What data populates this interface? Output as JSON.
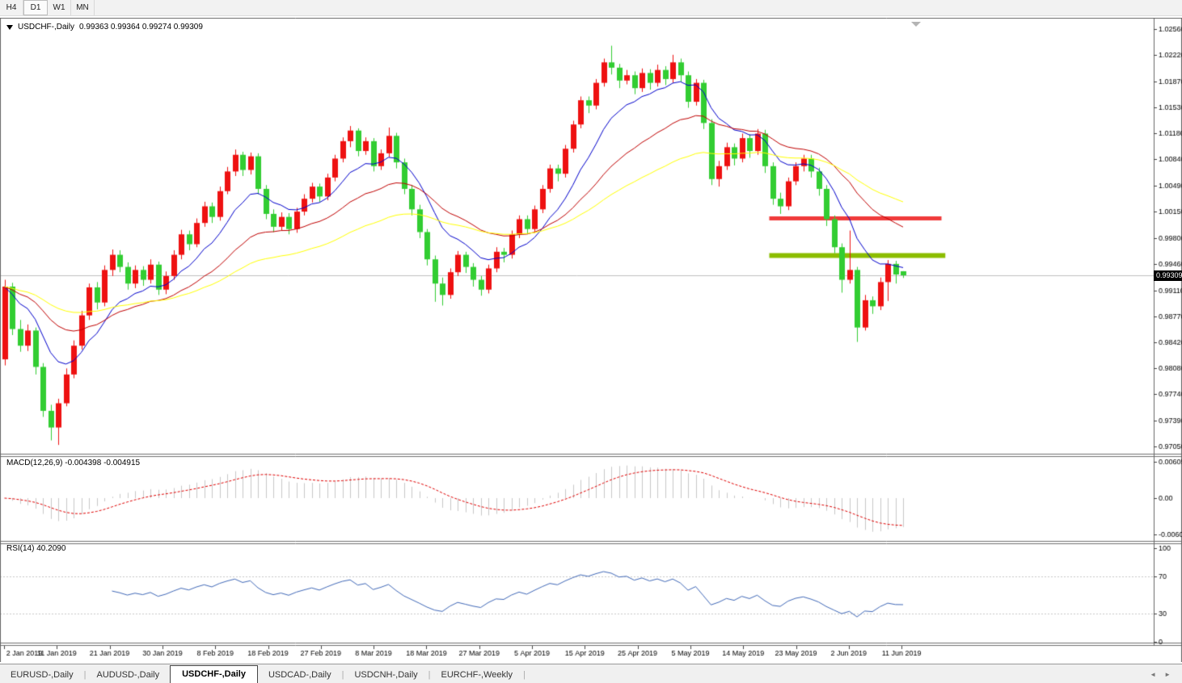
{
  "toolbar": {
    "buttons": [
      {
        "id": "h4",
        "label": "H4",
        "active": false
      },
      {
        "id": "d1",
        "label": "D1",
        "active": true
      },
      {
        "id": "w1",
        "label": "W1",
        "active": false
      },
      {
        "id": "mn",
        "label": "MN",
        "active": false
      }
    ]
  },
  "chart_header": {
    "symbol_period": "USDCHF-,Daily",
    "ohlc_text": "0.99363  0.99364  0.99274  0.99309"
  },
  "pane_labels": {
    "macd": "MACD(12,26,9) -0.004398 -0.004915",
    "rsi": "RSI(14) 40.2090"
  },
  "current_price_badge": "0.99309",
  "chart_data": {
    "type": "candlestick",
    "title": "USDCHF-,Daily",
    "ohlc_display": {
      "open": "0.99363",
      "high": "0.99364",
      "low": "0.99274",
      "close": "0.99309"
    },
    "current_price": 0.99309,
    "colors": {
      "bull": "#ee1111",
      "bear": "#32cd32",
      "ma_fast": "#0000cc",
      "ma_mid": "#c00000",
      "ma_slow": "#ffff00",
      "price_line": "#c0c0c0",
      "hline_resistance": "#f03b3b",
      "hline_support": "#8cbd00",
      "macd_bars": "#c8c8c8",
      "macd_signal": "#e00000",
      "rsi_line": "#4169b8",
      "rsi_levels": "#c8c8c8",
      "axis_text": "#000000",
      "frame": "#666666"
    },
    "y_ticks": [
      "1.02560",
      "1.02220",
      "1.01870",
      "1.01530",
      "1.01180",
      "1.00840",
      "1.00490",
      "1.00150",
      "0.99800",
      "0.99460",
      "0.99110",
      "0.98770",
      "0.98420",
      "0.98080",
      "0.97740",
      "0.97390",
      "0.97050"
    ],
    "price_axis": {
      "top": 1.02709,
      "bottom": 0.96954
    },
    "x_labels": [
      "2 Jan 2019",
      "11 Jan 2019",
      "21 Jan 2019",
      "30 Jan 2019",
      "8 Feb 2019",
      "18 Feb 2019",
      "27 Feb 2019",
      "8 Mar 2019",
      "18 Mar 2019",
      "27 Mar 2019",
      "5 Apr 2019",
      "15 Apr 2019",
      "25 Apr 2019",
      "5 May 2019",
      "14 May 2019",
      "23 May 2019",
      "2 Jun 2019",
      "11 Jun 2019"
    ],
    "moving_averages": [
      {
        "period": 10,
        "color_key": "ma_fast"
      },
      {
        "period": 25,
        "color_key": "ma_mid"
      },
      {
        "period": 50,
        "color_key": "ma_slow"
      }
    ],
    "hlines": [
      {
        "price": 1.0006,
        "color_key": "hline_resistance",
        "width": 5,
        "from_index": 100,
        "to_index": 122
      },
      {
        "price": 0.9957,
        "color_key": "hline_support",
        "width": 6,
        "from_index": 100,
        "to_index": 122.5
      }
    ],
    "macd": {
      "params": "12,26,9",
      "value": -0.004398,
      "signal": -0.004915,
      "y_ticks": [
        {
          "label": "0.006058",
          "value": 0.006058
        },
        {
          "label": "0.00",
          "value": 0.0
        },
        {
          "label": "-0.006096",
          "value": -0.006096
        }
      ]
    },
    "rsi": {
      "period": 14,
      "value": 40.209,
      "levels": [
        70,
        30
      ],
      "y_ticks": [
        {
          "label": "100",
          "value": 100
        },
        {
          "label": "70",
          "value": 70
        },
        {
          "label": "30",
          "value": 30
        },
        {
          "label": "0",
          "value": 0
        }
      ]
    },
    "candles": [
      [
        0.982,
        0.9925,
        0.9812,
        0.9916
      ],
      [
        0.9916,
        0.9921,
        0.9852,
        0.986
      ],
      [
        0.986,
        0.9872,
        0.983,
        0.9838
      ],
      [
        0.9838,
        0.9866,
        0.9831,
        0.9858
      ],
      [
        0.9858,
        0.9862,
        0.98,
        0.981
      ],
      [
        0.981,
        0.9815,
        0.9744,
        0.9752
      ],
      [
        0.9752,
        0.976,
        0.9713,
        0.973
      ],
      [
        0.973,
        0.9768,
        0.9707,
        0.9762
      ],
      [
        0.9762,
        0.9808,
        0.9758,
        0.98
      ],
      [
        0.98,
        0.9845,
        0.9795,
        0.9838
      ],
      [
        0.9838,
        0.9884,
        0.9833,
        0.9878
      ],
      [
        0.9878,
        0.992,
        0.9872,
        0.9915
      ],
      [
        0.9915,
        0.9922,
        0.9886,
        0.9895
      ],
      [
        0.9895,
        0.9944,
        0.989,
        0.9938
      ],
      [
        0.9938,
        0.9965,
        0.993,
        0.9958
      ],
      [
        0.9958,
        0.9964,
        0.9935,
        0.9942
      ],
      [
        0.9942,
        0.9948,
        0.9912,
        0.992
      ],
      [
        0.992,
        0.9944,
        0.9914,
        0.9938
      ],
      [
        0.9938,
        0.9943,
        0.9917,
        0.9925
      ],
      [
        0.9925,
        0.9952,
        0.992,
        0.9945
      ],
      [
        0.9945,
        0.9949,
        0.9905,
        0.9912
      ],
      [
        0.9912,
        0.9936,
        0.9906,
        0.993
      ],
      [
        0.993,
        0.9964,
        0.9925,
        0.9958
      ],
      [
        0.9958,
        0.9991,
        0.9952,
        0.9985
      ],
      [
        0.9985,
        0.999,
        0.9964,
        0.9972
      ],
      [
        0.9972,
        1.0006,
        0.9968,
        1.0
      ],
      [
        1.0,
        1.0028,
        0.9995,
        1.0022
      ],
      [
        1.0022,
        1.0027,
        1.0,
        1.0008
      ],
      [
        1.0008,
        1.0048,
        1.0003,
        1.0042
      ],
      [
        1.0042,
        1.0074,
        1.0038,
        1.0068
      ],
      [
        1.0068,
        1.0097,
        1.0062,
        1.009
      ],
      [
        1.009,
        1.0094,
        1.0062,
        1.007
      ],
      [
        1.007,
        1.0093,
        1.0064,
        1.0088
      ],
      [
        1.0088,
        1.0092,
        1.0038,
        1.0045
      ],
      [
        1.0045,
        1.005,
        1.0005,
        1.0012
      ],
      [
        1.0012,
        1.0018,
        0.9988,
        0.9995
      ],
      [
        0.9995,
        1.0014,
        0.999,
        1.0008
      ],
      [
        1.0008,
        1.0013,
        0.9985,
        0.9992
      ],
      [
        0.9992,
        1.002,
        0.9987,
        1.0015
      ],
      [
        1.0015,
        1.0038,
        1.001,
        1.0032
      ],
      [
        1.0032,
        1.0053,
        1.0027,
        1.0048
      ],
      [
        1.0048,
        1.0052,
        1.0028,
        1.0035
      ],
      [
        1.0035,
        1.0065,
        1.003,
        1.006
      ],
      [
        1.006,
        1.009,
        1.0055,
        1.0085
      ],
      [
        1.0085,
        1.0113,
        1.008,
        1.0108
      ],
      [
        1.0108,
        1.0128,
        1.01,
        1.0122
      ],
      [
        1.0122,
        1.0125,
        1.0088,
        1.0095
      ],
      [
        1.0095,
        1.0113,
        1.009,
        1.0108
      ],
      [
        1.0108,
        1.0112,
        1.0068,
        1.0075
      ],
      [
        1.0075,
        1.0097,
        1.007,
        1.0092
      ],
      [
        1.0092,
        1.0126,
        1.0087,
        1.0115
      ],
      [
        1.0115,
        1.0119,
        1.0072,
        1.008
      ],
      [
        1.008,
        1.0085,
        1.0038,
        1.0045
      ],
      [
        1.0045,
        1.005,
        1.001,
        1.0018
      ],
      [
        1.0018,
        1.0024,
        0.998,
        0.9988
      ],
      [
        0.9988,
        0.9992,
        0.9944,
        0.9952
      ],
      [
        0.9952,
        0.9957,
        0.9896,
        0.992
      ],
      [
        0.992,
        0.9928,
        0.9891,
        0.9905
      ],
      [
        0.9905,
        0.994,
        0.99,
        0.9935
      ],
      [
        0.9935,
        0.9963,
        0.993,
        0.9958
      ],
      [
        0.9958,
        0.9962,
        0.9934,
        0.9942
      ],
      [
        0.9942,
        0.9947,
        0.9916,
        0.9925
      ],
      [
        0.9925,
        0.993,
        0.9904,
        0.9912
      ],
      [
        0.9912,
        0.9945,
        0.9907,
        0.994
      ],
      [
        0.994,
        0.9968,
        0.9935,
        0.9962
      ],
      [
        0.9962,
        0.9967,
        0.9948,
        0.9958
      ],
      [
        0.9958,
        0.999,
        0.9953,
        0.9985
      ],
      [
        0.9985,
        1.001,
        0.998,
        1.0005
      ],
      [
        1.0005,
        1.001,
        0.9985,
        0.9992
      ],
      [
        0.9992,
        1.0023,
        0.9987,
        1.0018
      ],
      [
        1.0018,
        1.005,
        1.0013,
        1.0045
      ],
      [
        1.0045,
        1.0077,
        1.004,
        1.0072
      ],
      [
        1.0072,
        1.0077,
        1.0055,
        1.0065
      ],
      [
        1.0065,
        1.0103,
        1.006,
        1.0098
      ],
      [
        1.0098,
        1.0135,
        1.0093,
        1.013
      ],
      [
        1.013,
        1.0167,
        1.0125,
        1.0162
      ],
      [
        1.0162,
        1.0167,
        1.0145,
        1.0155
      ],
      [
        1.0155,
        1.019,
        1.015,
        1.0185
      ],
      [
        1.0185,
        1.0217,
        1.018,
        1.0212
      ],
      [
        1.0212,
        1.0234,
        1.0196,
        1.0205
      ],
      [
        1.0205,
        1.021,
        1.0178,
        1.0188
      ],
      [
        1.0188,
        1.0202,
        1.0183,
        1.0195
      ],
      [
        1.0195,
        1.02,
        1.017,
        1.0178
      ],
      [
        1.0178,
        1.0204,
        1.0173,
        1.0198
      ],
      [
        1.0198,
        1.0203,
        1.0176,
        1.0185
      ],
      [
        1.0185,
        1.0209,
        1.018,
        1.0202
      ],
      [
        1.0202,
        1.0207,
        1.0182,
        1.019
      ],
      [
        1.019,
        1.0222,
        1.0185,
        1.0212
      ],
      [
        1.0212,
        1.0217,
        1.0186,
        1.0195
      ],
      [
        1.0195,
        1.02,
        1.0152,
        1.016
      ],
      [
        1.016,
        1.019,
        1.0155,
        1.0185
      ],
      [
        1.0185,
        1.0189,
        1.0124,
        1.0132
      ],
      [
        1.0132,
        1.0137,
        1.005,
        1.0058
      ],
      [
        1.0058,
        1.0082,
        1.0048,
        1.0075
      ],
      [
        1.0075,
        1.0106,
        1.007,
        1.01
      ],
      [
        1.01,
        1.0105,
        1.0076,
        1.0085
      ],
      [
        1.0085,
        1.0118,
        1.008,
        1.0112
      ],
      [
        1.0112,
        1.0117,
        1.0086,
        1.0095
      ],
      [
        1.0095,
        1.0124,
        1.009,
        1.0118
      ],
      [
        1.0118,
        1.0123,
        1.0066,
        1.0075
      ],
      [
        1.0075,
        1.008,
        1.0024,
        1.0032
      ],
      [
        1.0032,
        1.004,
        1.0012,
        1.0022
      ],
      [
        1.0022,
        1.006,
        1.0017,
        1.0055
      ],
      [
        1.0055,
        1.008,
        1.005,
        1.0075
      ],
      [
        1.0075,
        1.009,
        1.0068,
        1.0085
      ],
      [
        1.0085,
        1.009,
        1.006,
        1.0068
      ],
      [
        1.0068,
        1.0073,
        1.0036,
        1.0045
      ],
      [
        1.0045,
        1.005,
        0.9996,
        1.0005
      ],
      [
        1.0005,
        1.001,
        0.996,
        0.9968
      ],
      [
        0.9968,
        0.9973,
        0.9908,
        0.9925
      ],
      [
        0.9925,
        0.999,
        0.992,
        0.9938
      ],
      [
        0.9938,
        0.9942,
        0.9843,
        0.9862
      ],
      [
        0.9862,
        0.9905,
        0.9858,
        0.9898
      ],
      [
        0.9898,
        0.9903,
        0.988,
        0.989
      ],
      [
        0.989,
        0.9928,
        0.9885,
        0.9922
      ],
      [
        0.9922,
        0.9951,
        0.9897,
        0.9946
      ],
      [
        0.9946,
        0.995,
        0.992,
        0.9932
      ],
      [
        0.99363,
        0.99364,
        0.99274,
        0.99309
      ]
    ]
  },
  "tab_bar": {
    "tabs": [
      {
        "label": "EURUSD-,Daily",
        "active": false
      },
      {
        "label": "AUDUSD-,Daily",
        "active": false
      },
      {
        "label": "USDCHF-,Daily",
        "active": true
      },
      {
        "label": "USDCAD-,Daily",
        "active": false
      },
      {
        "label": "USDCNH-,Daily",
        "active": false
      },
      {
        "label": "EURCHF-,Weekly",
        "active": false
      }
    ],
    "scroll_left_icon": "◄",
    "scroll_right_icon": "►"
  }
}
